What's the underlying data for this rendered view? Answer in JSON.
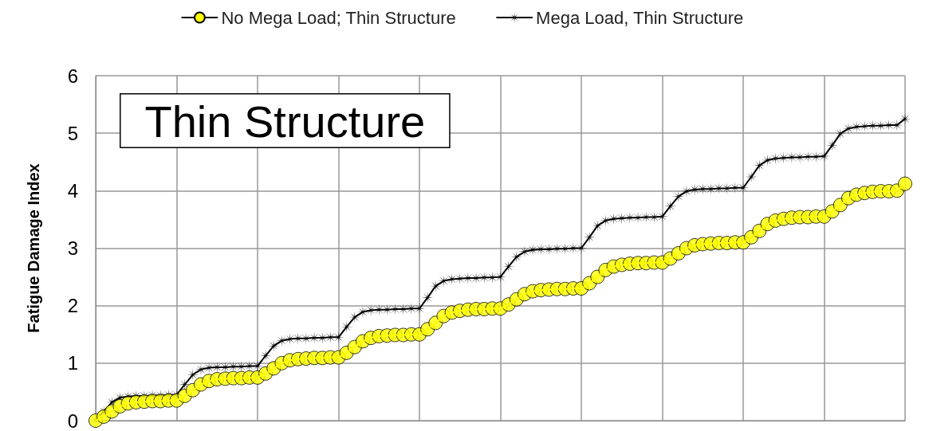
{
  "chart_data": {
    "type": "line",
    "ylabel": "Fatigue Damage Index",
    "annotations": [
      "Thin Structure"
    ],
    "categories": [
      null,
      null,
      null,
      null,
      null,
      null,
      null,
      null,
      null,
      null,
      null,
      null,
      null,
      null,
      null,
      null,
      null,
      null,
      null,
      null,
      null,
      null,
      null,
      null,
      null,
      null,
      null,
      null,
      null,
      null,
      null,
      null,
      null,
      null,
      null,
      null,
      null,
      null,
      null,
      null,
      null,
      null,
      null,
      null,
      null,
      null,
      null,
      null,
      null,
      null,
      null,
      null,
      null,
      null,
      null,
      null,
      null,
      null,
      null,
      null,
      null,
      null,
      null,
      null,
      null,
      null,
      null,
      null,
      null,
      null,
      null,
      null,
      null,
      null,
      null,
      null,
      null,
      null,
      null,
      null,
      null,
      null,
      null,
      null,
      null,
      null,
      null,
      null,
      null,
      null,
      null,
      null,
      null,
      null,
      null,
      null,
      null,
      null,
      null,
      null,
      null
    ],
    "ylim": [
      0,
      6
    ],
    "yticks": [
      0,
      1,
      2,
      3,
      4,
      5,
      6
    ],
    "grid": true,
    "legend": "top",
    "line_style": "solid",
    "series": [
      {
        "name": "No Mega Load; Thin Structure",
        "color": "#ffff00",
        "marker": "circle",
        "values": [
          0,
          0.07,
          0.16,
          0.25,
          0.3,
          0.32,
          0.33,
          0.34,
          0.34,
          0.35,
          0.35,
          0.43,
          0.53,
          0.63,
          0.69,
          0.72,
          0.73,
          0.74,
          0.74,
          0.75,
          0.75,
          0.82,
          0.91,
          1.0,
          1.05,
          1.07,
          1.08,
          1.09,
          1.09,
          1.1,
          1.1,
          1.18,
          1.28,
          1.38,
          1.44,
          1.47,
          1.48,
          1.49,
          1.49,
          1.5,
          1.5,
          1.59,
          1.7,
          1.82,
          1.88,
          1.91,
          1.93,
          1.94,
          1.94,
          1.95,
          1.95,
          2.02,
          2.11,
          2.2,
          2.25,
          2.27,
          2.28,
          2.29,
          2.29,
          2.3,
          2.3,
          2.39,
          2.5,
          2.62,
          2.68,
          2.71,
          2.73,
          2.74,
          2.74,
          2.75,
          2.75,
          2.82,
          2.91,
          3.0,
          3.05,
          3.07,
          3.08,
          3.09,
          3.09,
          3.1,
          3.1,
          3.19,
          3.3,
          3.42,
          3.48,
          3.51,
          3.53,
          3.54,
          3.54,
          3.55,
          3.55,
          3.64,
          3.75,
          3.87,
          3.93,
          3.96,
          3.98,
          3.99,
          3.99,
          4.0,
          4.12
        ]
      },
      {
        "name": "Mega Load, Thin Structure",
        "color": "#000000",
        "marker": "star",
        "values": [
          0,
          0.16,
          0.32,
          0.4,
          0.42,
          0.43,
          0.43,
          0.44,
          0.44,
          0.45,
          0.45,
          0.63,
          0.8,
          0.89,
          0.92,
          0.93,
          0.93,
          0.94,
          0.94,
          0.95,
          0.95,
          1.13,
          1.3,
          1.39,
          1.42,
          1.43,
          1.43,
          1.44,
          1.44,
          1.45,
          1.45,
          1.63,
          1.8,
          1.89,
          1.92,
          1.93,
          1.93,
          1.94,
          1.94,
          1.95,
          1.95,
          2.14,
          2.34,
          2.43,
          2.46,
          2.47,
          2.48,
          2.48,
          2.49,
          2.49,
          2.5,
          2.68,
          2.85,
          2.94,
          2.97,
          2.98,
          2.98,
          2.99,
          2.99,
          3.0,
          3.0,
          3.19,
          3.39,
          3.48,
          3.51,
          3.52,
          3.53,
          3.53,
          3.54,
          3.54,
          3.55,
          3.73,
          3.9,
          3.99,
          4.02,
          4.03,
          4.03,
          4.04,
          4.04,
          4.05,
          4.05,
          4.24,
          4.44,
          4.53,
          4.56,
          4.57,
          4.58,
          4.58,
          4.59,
          4.59,
          4.6,
          4.79,
          4.99,
          5.08,
          5.11,
          5.12,
          5.13,
          5.13,
          5.14,
          5.14,
          5.25
        ]
      }
    ]
  }
}
